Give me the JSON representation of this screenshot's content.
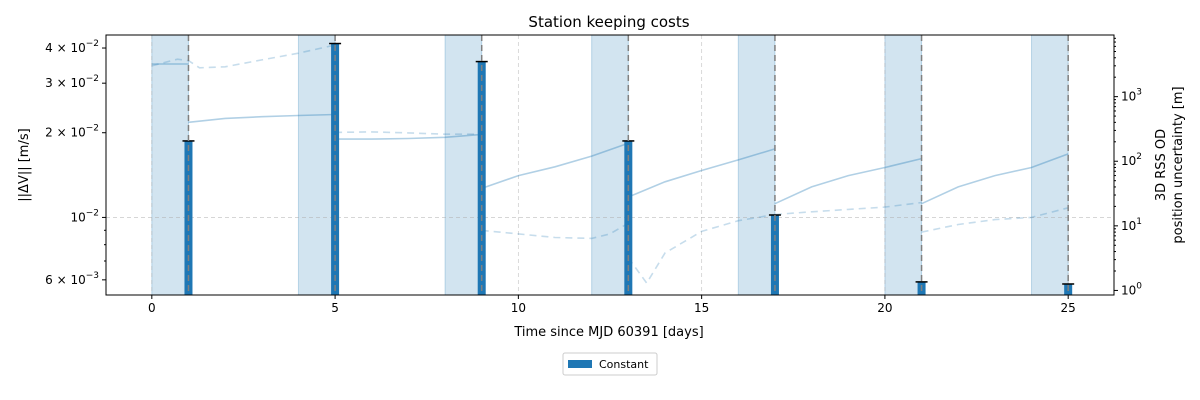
{
  "chart_data": {
    "type": "bar",
    "title": "Station keeping costs",
    "xlabel": "Time since MJD 60391 [days]",
    "ylabel": "||ΔV|| [m/s]",
    "y2label_line1": "3D RSS OD",
    "y2label_line2": "position uncertainty [m]",
    "xlim": [
      -1.25,
      26.25
    ],
    "ylim": [
      0.0053,
      0.0445
    ],
    "y2lim": [
      0.85,
      9000
    ],
    "y_scale": "log",
    "y2_scale": "log",
    "grid": true,
    "legend_position": "bottom-center",
    "x_ticks": [
      0,
      5,
      10,
      15,
      20,
      25
    ],
    "x_tick_labels": [
      "0",
      "5",
      "10",
      "15",
      "20",
      "25"
    ],
    "y_ticks": [
      {
        "value": 0.006,
        "mant": "6",
        "exp": "−3"
      },
      {
        "value": 0.01,
        "mant": "10",
        "exp": "−2"
      },
      {
        "value": 0.02,
        "mant": "2",
        "exp": "−2"
      },
      {
        "value": 0.03,
        "mant": "3",
        "exp": "−2"
      },
      {
        "value": 0.04,
        "mant": "4",
        "exp": "−2"
      }
    ],
    "y2_ticks": [
      {
        "value": 1,
        "mant": "10",
        "exp": "0"
      },
      {
        "value": 10,
        "mant": "10",
        "exp": "1"
      },
      {
        "value": 100,
        "mant": "10",
        "exp": "2"
      },
      {
        "value": 1000,
        "mant": "10",
        "exp": "3"
      }
    ],
    "tracking_windows": [
      [
        0,
        1
      ],
      [
        4,
        5
      ],
      [
        8,
        9
      ],
      [
        12,
        13
      ],
      [
        16,
        17
      ],
      [
        20,
        21
      ],
      [
        24,
        25
      ]
    ],
    "maneuver_times": [
      1,
      5,
      9,
      13,
      17,
      21,
      25
    ],
    "series": [
      {
        "name": "Constant",
        "x": [
          1,
          5,
          9,
          13,
          17,
          21,
          25
        ],
        "values": [
          0.0187,
          0.0415,
          0.0358,
          0.0187,
          0.0102,
          0.0059,
          0.0058
        ],
        "color": "#1f77b4"
      }
    ],
    "uncertainty_solid": [
      [
        [
          0,
          3200
        ],
        [
          1,
          3200
        ]
      ],
      [
        [
          1,
          400
        ],
        [
          2,
          460
        ],
        [
          3,
          490
        ],
        [
          4,
          510
        ],
        [
          5,
          530
        ]
      ],
      [
        [
          5,
          220
        ],
        [
          6,
          220
        ],
        [
          7,
          225
        ],
        [
          8,
          235
        ],
        [
          9,
          260
        ]
      ],
      [
        [
          9,
          38
        ],
        [
          10,
          60
        ],
        [
          11,
          82
        ],
        [
          12,
          120
        ],
        [
          13,
          190
        ]
      ],
      [
        [
          13,
          28
        ],
        [
          14,
          48
        ],
        [
          15,
          72
        ],
        [
          16,
          105
        ],
        [
          17,
          155
        ]
      ],
      [
        [
          17,
          22
        ],
        [
          18,
          40
        ],
        [
          19,
          60
        ],
        [
          20,
          80
        ],
        [
          21,
          110
        ]
      ],
      [
        [
          21,
          22
        ],
        [
          22,
          40
        ],
        [
          23,
          60
        ],
        [
          24,
          80
        ],
        [
          25,
          130
        ]
      ]
    ],
    "uncertainty_dashed": [
      [
        [
          0,
          3000
        ],
        [
          0.7,
          3800
        ],
        [
          1,
          3600
        ],
        [
          1.3,
          2800
        ],
        [
          2,
          2900
        ],
        [
          3,
          3700
        ],
        [
          4,
          4700
        ],
        [
          5,
          6300
        ]
      ],
      [
        [
          5,
          280
        ],
        [
          6,
          285
        ],
        [
          7,
          275
        ],
        [
          8,
          262
        ],
        [
          9,
          262
        ]
      ],
      [
        [
          9,
          8.5
        ],
        [
          10,
          7.5
        ],
        [
          11,
          6.6
        ],
        [
          12,
          6.4
        ],
        [
          12.5,
          7.5
        ],
        [
          13,
          11
        ]
      ],
      [
        [
          13,
          3.2
        ],
        [
          13.5,
          1.3
        ],
        [
          14,
          3.8
        ],
        [
          15,
          8.2
        ],
        [
          16,
          12
        ],
        [
          17,
          15
        ]
      ],
      [
        [
          17,
          15
        ],
        [
          18,
          16.5
        ],
        [
          19,
          18
        ],
        [
          20,
          19.5
        ],
        [
          21,
          23
        ]
      ],
      [
        [
          21,
          8
        ],
        [
          22,
          10.5
        ],
        [
          23,
          12.5
        ],
        [
          24,
          13.5
        ],
        [
          25,
          19
        ]
      ]
    ],
    "colors": {
      "bar": "#1f77b4",
      "window": "#1f77b4",
      "line": "#1f77b4",
      "grid": "#b0b0b0",
      "maneuver_line": "#808080"
    }
  }
}
